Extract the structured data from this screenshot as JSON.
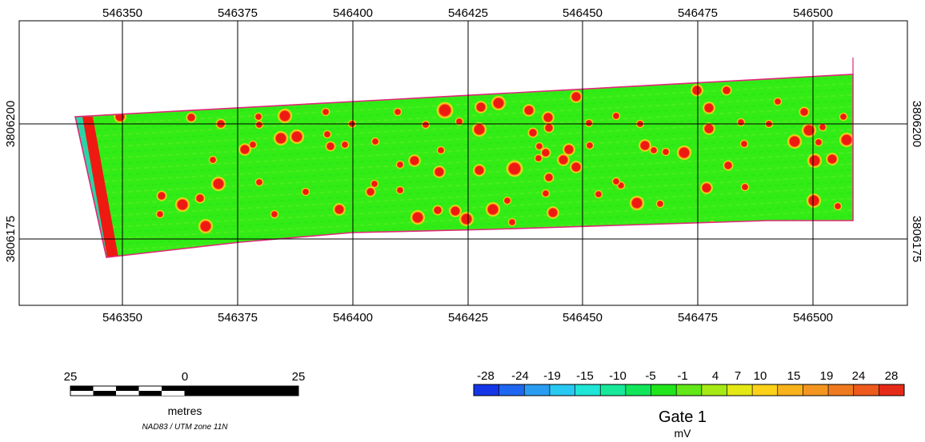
{
  "map": {
    "x_ticks": [
      "546350",
      "546375",
      "546400",
      "546425",
      "546450",
      "546475",
      "546500"
    ],
    "y_ticks": [
      "3806200",
      "3806175"
    ]
  },
  "scale_bar": {
    "labels": [
      "25",
      "0",
      "25"
    ],
    "unit": "metres",
    "projection": "NAD83 / UTM zone 11N"
  },
  "legend": {
    "tick_labels": [
      "-28",
      "-24",
      "-19",
      "-15",
      "-10",
      "-5",
      "-1",
      "4",
      "7",
      "10",
      "15",
      "19",
      "24",
      "28"
    ],
    "colors": [
      "#1436e6",
      "#1f66f0",
      "#2a9cf2",
      "#27c9f2",
      "#1fe6d6",
      "#17e89a",
      "#11e65a",
      "#21e51b",
      "#62e816",
      "#a6ea15",
      "#e4e814",
      "#ffd21a",
      "#f7b21c",
      "#f49520",
      "#f07a1f",
      "#ee5a1c",
      "#e62a18"
    ],
    "title": "Gate 1",
    "unit": "mV"
  },
  "colors": {
    "survey_fill": "#33ec15",
    "survey_outline": "#e0287a",
    "anomaly": "#ee1a12",
    "anomaly_halo": "#e6e116",
    "grid": "#000000"
  }
}
